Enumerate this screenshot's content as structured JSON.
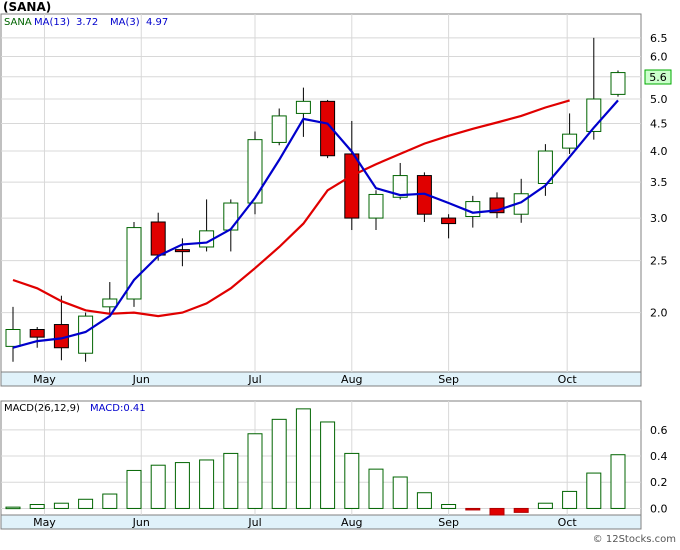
{
  "chart_data": [
    {
      "type": "candlestick",
      "title": "(SANA)",
      "scale": "log",
      "ylim": [
        1.55,
        7.2
      ],
      "y_ticks": [
        "6.5",
        "6.0",
        "5.5",
        "5.0",
        "4.5",
        "4.0",
        "3.5",
        "3.0",
        "2.5",
        "2.0"
      ],
      "x_ticks": [
        {
          "label": "May",
          "week": 1.3
        },
        {
          "label": "Jun",
          "week": 5.3
        },
        {
          "label": "Jul",
          "week": 10.0
        },
        {
          "label": "Aug",
          "week": 14.0
        },
        {
          "label": "Sep",
          "week": 18.0
        },
        {
          "label": "Oct",
          "week": 22.9
        }
      ],
      "legend": [
        {
          "text": "SANA",
          "color": "#006400"
        },
        {
          "text": "MA(13)",
          "color": "#0000cc",
          "value": "3.72"
        },
        {
          "text": "MA(3)",
          "color": "#0000cc",
          "value": "4.97"
        }
      ],
      "last_price": "5.6",
      "candles": [
        {
          "o": 1.73,
          "h": 2.05,
          "l": 1.62,
          "c": 1.86
        },
        {
          "o": 1.86,
          "h": 1.88,
          "l": 1.72,
          "c": 1.8
        },
        {
          "o": 1.9,
          "h": 2.15,
          "l": 1.63,
          "c": 1.72
        },
        {
          "o": 1.68,
          "h": 2.0,
          "l": 1.62,
          "c": 1.97
        },
        {
          "o": 2.05,
          "h": 2.28,
          "l": 1.98,
          "c": 2.12
        },
        {
          "o": 2.12,
          "h": 2.95,
          "l": 2.05,
          "c": 2.88
        },
        {
          "o": 2.95,
          "h": 3.07,
          "l": 2.5,
          "c": 2.56
        },
        {
          "o": 2.62,
          "h": 2.75,
          "l": 2.44,
          "c": 2.6
        },
        {
          "o": 2.65,
          "h": 3.25,
          "l": 2.6,
          "c": 2.84
        },
        {
          "o": 2.85,
          "h": 3.25,
          "l": 2.6,
          "c": 3.2
        },
        {
          "o": 3.2,
          "h": 4.35,
          "l": 3.05,
          "c": 4.2
        },
        {
          "o": 4.15,
          "h": 4.8,
          "l": 4.1,
          "c": 4.65
        },
        {
          "o": 4.7,
          "h": 5.25,
          "l": 4.25,
          "c": 4.95
        },
        {
          "o": 4.95,
          "h": 4.98,
          "l": 3.88,
          "c": 3.92
        },
        {
          "o": 3.95,
          "h": 4.55,
          "l": 2.85,
          "c": 3.0
        },
        {
          "o": 3.0,
          "h": 3.38,
          "l": 2.85,
          "c": 3.32
        },
        {
          "o": 3.28,
          "h": 3.8,
          "l": 3.25,
          "c": 3.6
        },
        {
          "o": 3.6,
          "h": 3.65,
          "l": 2.95,
          "c": 3.05
        },
        {
          "o": 3.0,
          "h": 3.05,
          "l": 2.75,
          "c": 2.93
        },
        {
          "o": 3.02,
          "h": 3.3,
          "l": 2.88,
          "c": 3.22
        },
        {
          "o": 3.27,
          "h": 3.35,
          "l": 3.0,
          "c": 3.07
        },
        {
          "o": 3.05,
          "h": 3.55,
          "l": 2.94,
          "c": 3.33
        },
        {
          "o": 3.48,
          "h": 4.12,
          "l": 3.3,
          "c": 4.0
        },
        {
          "o": 4.05,
          "h": 4.7,
          "l": 3.95,
          "c": 4.3
        },
        {
          "o": 4.35,
          "h": 6.5,
          "l": 4.2,
          "c": 5.0
        },
        {
          "o": 5.1,
          "h": 5.65,
          "l": 5.05,
          "c": 5.6
        }
      ],
      "ma_red": [
        [
          0,
          2.3
        ],
        [
          1,
          2.22
        ],
        [
          2,
          2.1
        ],
        [
          3,
          2.02
        ],
        [
          4,
          1.99
        ],
        [
          5,
          2.0
        ],
        [
          6,
          1.97
        ],
        [
          7,
          2.0
        ],
        [
          8,
          2.08
        ],
        [
          9,
          2.22
        ],
        [
          10,
          2.42
        ],
        [
          11,
          2.65
        ],
        [
          12,
          2.93
        ],
        [
          13,
          3.38
        ],
        [
          14,
          3.6
        ],
        [
          15,
          3.78
        ],
        [
          16,
          3.95
        ],
        [
          17,
          4.13
        ],
        [
          18,
          4.27
        ],
        [
          19,
          4.4
        ],
        [
          20,
          4.52
        ],
        [
          21,
          4.65
        ],
        [
          22,
          4.82
        ],
        [
          23,
          4.97
        ]
      ],
      "ma_blue": [
        [
          0,
          1.72
        ],
        [
          1,
          1.77
        ],
        [
          2,
          1.79
        ],
        [
          3,
          1.84
        ],
        [
          4,
          1.97
        ],
        [
          5,
          2.3
        ],
        [
          6,
          2.55
        ],
        [
          7,
          2.68
        ],
        [
          8,
          2.7
        ],
        [
          9,
          2.86
        ],
        [
          10,
          3.27
        ],
        [
          11,
          3.85
        ],
        [
          12,
          4.59
        ],
        [
          13,
          4.5
        ],
        [
          14,
          3.99
        ],
        [
          15,
          3.41
        ],
        [
          16,
          3.31
        ],
        [
          17,
          3.33
        ],
        [
          18,
          3.2
        ],
        [
          19,
          3.07
        ],
        [
          20,
          3.1
        ],
        [
          21,
          3.21
        ],
        [
          22,
          3.45
        ],
        [
          23,
          3.9
        ],
        [
          24,
          4.42
        ],
        [
          25,
          4.97
        ]
      ]
    },
    {
      "type": "bar",
      "title": "MACD(26,12,9)",
      "legend": [
        {
          "text": "MACD(26,12,9)",
          "color": "#000000"
        },
        {
          "text": "MACD:0.41",
          "color": "#0000cc"
        }
      ],
      "ylim": [
        -0.05,
        0.82
      ],
      "y_ticks": [
        "0.6",
        "0.4",
        "0.2",
        "0.0"
      ],
      "x_ticks": [
        "May",
        "Jun",
        "Jul",
        "Aug",
        "Sep",
        "Oct"
      ],
      "values": [
        0.01,
        0.03,
        0.04,
        0.07,
        0.11,
        0.29,
        0.33,
        0.35,
        0.37,
        0.42,
        0.57,
        0.68,
        0.76,
        0.66,
        0.42,
        0.3,
        0.24,
        0.12,
        0.03,
        -0.01,
        -0.05,
        -0.03,
        0.04,
        0.13,
        0.27,
        0.41
      ]
    }
  ],
  "watermark": "© 12Stocks.com"
}
